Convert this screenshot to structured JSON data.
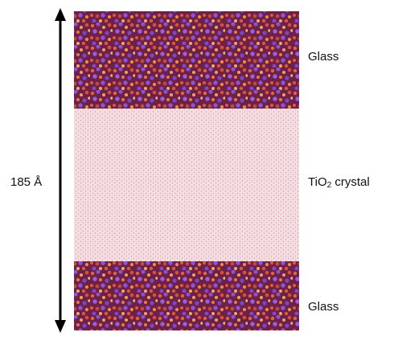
{
  "dimension": "185 Å",
  "regions": [
    {
      "label": "Glass"
    },
    {
      "label": "TiO",
      "subscript": "2",
      "suffix": " crystal"
    },
    {
      "label": "Glass"
    }
  ]
}
